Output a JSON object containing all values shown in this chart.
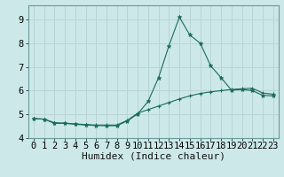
{
  "title": "",
  "xlabel": "Humidex (Indice chaleur)",
  "ylabel": "",
  "bg_color": "#cce8e8",
  "grid_color": "#b8d4d4",
  "line_color": "#1a6b5a",
  "spine_color": "#6a9a9a",
  "xlim": [
    -0.5,
    23.5
  ],
  "ylim": [
    4.0,
    9.6
  ],
  "xticks": [
    0,
    1,
    2,
    3,
    4,
    5,
    6,
    7,
    8,
    9,
    10,
    11,
    12,
    13,
    14,
    15,
    16,
    17,
    18,
    19,
    20,
    21,
    22,
    23
  ],
  "yticks": [
    4,
    5,
    6,
    7,
    8,
    9
  ],
  "line1_x": [
    0,
    1,
    2,
    3,
    4,
    5,
    6,
    7,
    8,
    9,
    10,
    11,
    12,
    13,
    14,
    15,
    16,
    17,
    18,
    19,
    20,
    21,
    22,
    23
  ],
  "line1_y": [
    4.82,
    4.8,
    4.62,
    4.62,
    4.58,
    4.55,
    4.53,
    4.52,
    4.52,
    4.72,
    5.02,
    5.55,
    6.55,
    7.9,
    9.1,
    8.35,
    8.0,
    7.05,
    6.55,
    6.02,
    6.05,
    6.0,
    5.8,
    5.78
  ],
  "line2_x": [
    0,
    1,
    2,
    3,
    4,
    5,
    6,
    7,
    8,
    9,
    10,
    11,
    12,
    13,
    14,
    15,
    16,
    17,
    18,
    19,
    20,
    21,
    22,
    23
  ],
  "line2_y": [
    4.82,
    4.8,
    4.65,
    4.63,
    4.6,
    4.57,
    4.55,
    4.55,
    4.55,
    4.75,
    5.05,
    5.2,
    5.35,
    5.5,
    5.65,
    5.78,
    5.88,
    5.95,
    6.0,
    6.05,
    6.08,
    6.1,
    5.9,
    5.85
  ],
  "tick_fontsize": 7.5,
  "xlabel_fontsize": 8.0
}
